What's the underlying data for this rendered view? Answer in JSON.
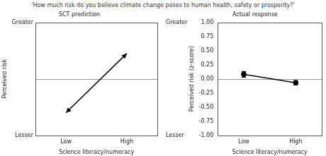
{
  "title": "'How much risk do you believe climate change poses to human health, safety or prosperity?'",
  "chart_data": [
    {
      "type": "line",
      "title": "SCT prediction",
      "x_label": "Science literacy/numeracy",
      "y_label": "Perceived risk",
      "categories": [
        "Low",
        "High"
      ],
      "values": [
        -0.6,
        0.45
      ],
      "color": "#000000",
      "marker": "arrow",
      "line_style": "solid",
      "ylim": [
        -1,
        1
      ],
      "yticks": [
        {
          "value": -1,
          "label": "Lesser"
        },
        {
          "value": 1,
          "label": "Greater"
        }
      ],
      "grid": false
    },
    {
      "type": "line",
      "title": "Actual response",
      "x_label": "Science literacy/numeracy",
      "y_label": "Perceived risk (z-score)",
      "categories": [
        "Low",
        "High"
      ],
      "values": [
        0.08,
        -0.07
      ],
      "errors": [
        0.05,
        0.04
      ],
      "color": "#000000",
      "marker": "circle",
      "line_style": "solid",
      "ylim": [
        -1,
        1
      ],
      "yticks": [
        {
          "value": -1,
          "label": "-1.00"
        },
        {
          "value": -0.75,
          "label": "-0.75"
        },
        {
          "value": -0.5,
          "label": "-0.50"
        },
        {
          "value": -0.25,
          "label": "-0.25"
        },
        {
          "value": 0,
          "label": "0.00"
        },
        {
          "value": 0.25,
          "label": "0.25"
        },
        {
          "value": 0.5,
          "label": "0.50"
        },
        {
          "value": 0.75,
          "label": "0.75"
        },
        {
          "value": 1,
          "label": "1.00"
        }
      ],
      "annotations": [
        {
          "text": "Greater",
          "y": 1
        },
        {
          "text": "Lesser",
          "y": -1
        }
      ],
      "grid": false
    }
  ]
}
